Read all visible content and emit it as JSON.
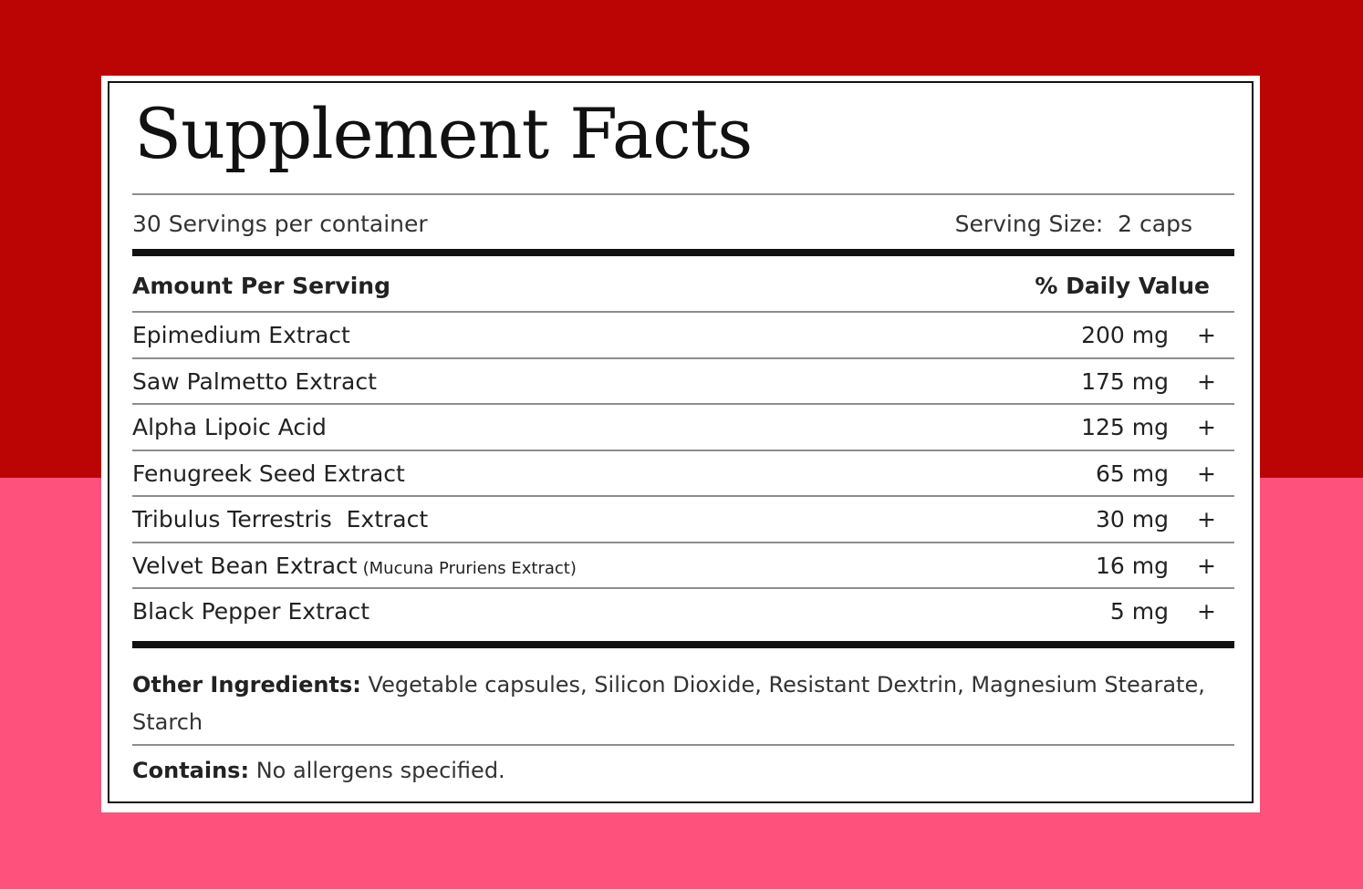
{
  "colors": {
    "background_top": "#bb0505",
    "background_bottom": "#fe527c",
    "label": "#ffffff"
  },
  "label": {
    "title": "Supplement Facts",
    "servings_per_container": "30 Servings per container",
    "serving_size": "Serving Size:  2 caps",
    "header_amount": "Amount Per Serving",
    "header_daily_value": "% Daily Value",
    "ingredients": [
      {
        "name": "Epimedium Extract",
        "note": "",
        "amount": "200 mg",
        "daily_value": "+"
      },
      {
        "name": "Saw Palmetto Extract",
        "note": "",
        "amount": "175 mg",
        "daily_value": "+"
      },
      {
        "name": "Alpha Lipoic Acid",
        "note": "",
        "amount": "125 mg",
        "daily_value": "+"
      },
      {
        "name": "Fenugreek Seed Extract",
        "note": "",
        "amount": "65 mg",
        "daily_value": "+"
      },
      {
        "name": "Tribulus Terrestris  Extract",
        "note": "",
        "amount": "30 mg",
        "daily_value": "+"
      },
      {
        "name": "Velvet Bean Extract",
        "note": "(Mucuna Pruriens Extract)",
        "amount": "16 mg",
        "daily_value": "+"
      },
      {
        "name": "Black Pepper Extract",
        "note": "",
        "amount": "5 mg",
        "daily_value": "+"
      }
    ],
    "other_ingredients_label": "Other Ingredients:",
    "other_ingredients_text": "Vegetable capsules, Silicon Dioxide, Resistant Dextrin, Magnesium Stearate, Starch",
    "contains_label": "Contains:",
    "contains_text": "No allergens specified."
  }
}
